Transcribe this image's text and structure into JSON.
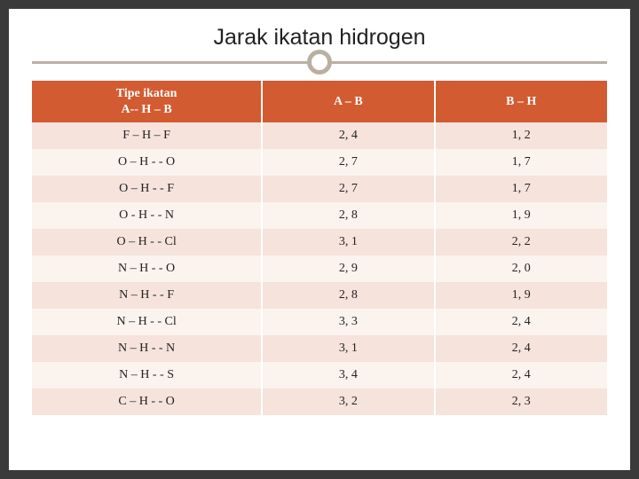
{
  "title": "Jarak ikatan hidrogen",
  "table": {
    "type": "table",
    "columns": [
      "Tipe  ikatan\nA-- H – B",
      "A – B",
      "B – H"
    ],
    "col_widths_pct": [
      40,
      30,
      30
    ],
    "header_bg": "#d25b32",
    "header_color": "#ffffff",
    "row_bg_odd": "#f5e3dc",
    "row_bg_even": "#fbf3ee",
    "cell_font_size_pt": 11,
    "header_font_size_pt": 11,
    "rows": [
      [
        "F – H – F",
        "2, 4",
        "1, 2"
      ],
      [
        "O – H - -  O",
        "2, 7",
        "1, 7"
      ],
      [
        "O – H - -  F",
        "2, 7",
        "1, 7"
      ],
      [
        "O  -  H - - N",
        "2, 8",
        "1, 9"
      ],
      [
        "O – H - - Cl",
        "3, 1",
        "2, 2"
      ],
      [
        "N – H - - O",
        "2, 9",
        "2, 0"
      ],
      [
        "N – H - - F",
        "2, 8",
        "1, 9"
      ],
      [
        "N – H - - Cl",
        "3, 3",
        "2, 4"
      ],
      [
        "N – H - - N",
        "3, 1",
        "2, 4"
      ],
      [
        "N – H - - S",
        "3, 4",
        "2, 4"
      ],
      [
        "C – H - - O",
        "3, 2",
        "2, 3"
      ]
    ]
  },
  "style": {
    "slide_bg": "#ffffff",
    "outer_bg": "#3a3a3a",
    "accent_line": "#b9b0a1",
    "title_font": "Comic Sans MS",
    "title_fontsize_pt": 19
  }
}
